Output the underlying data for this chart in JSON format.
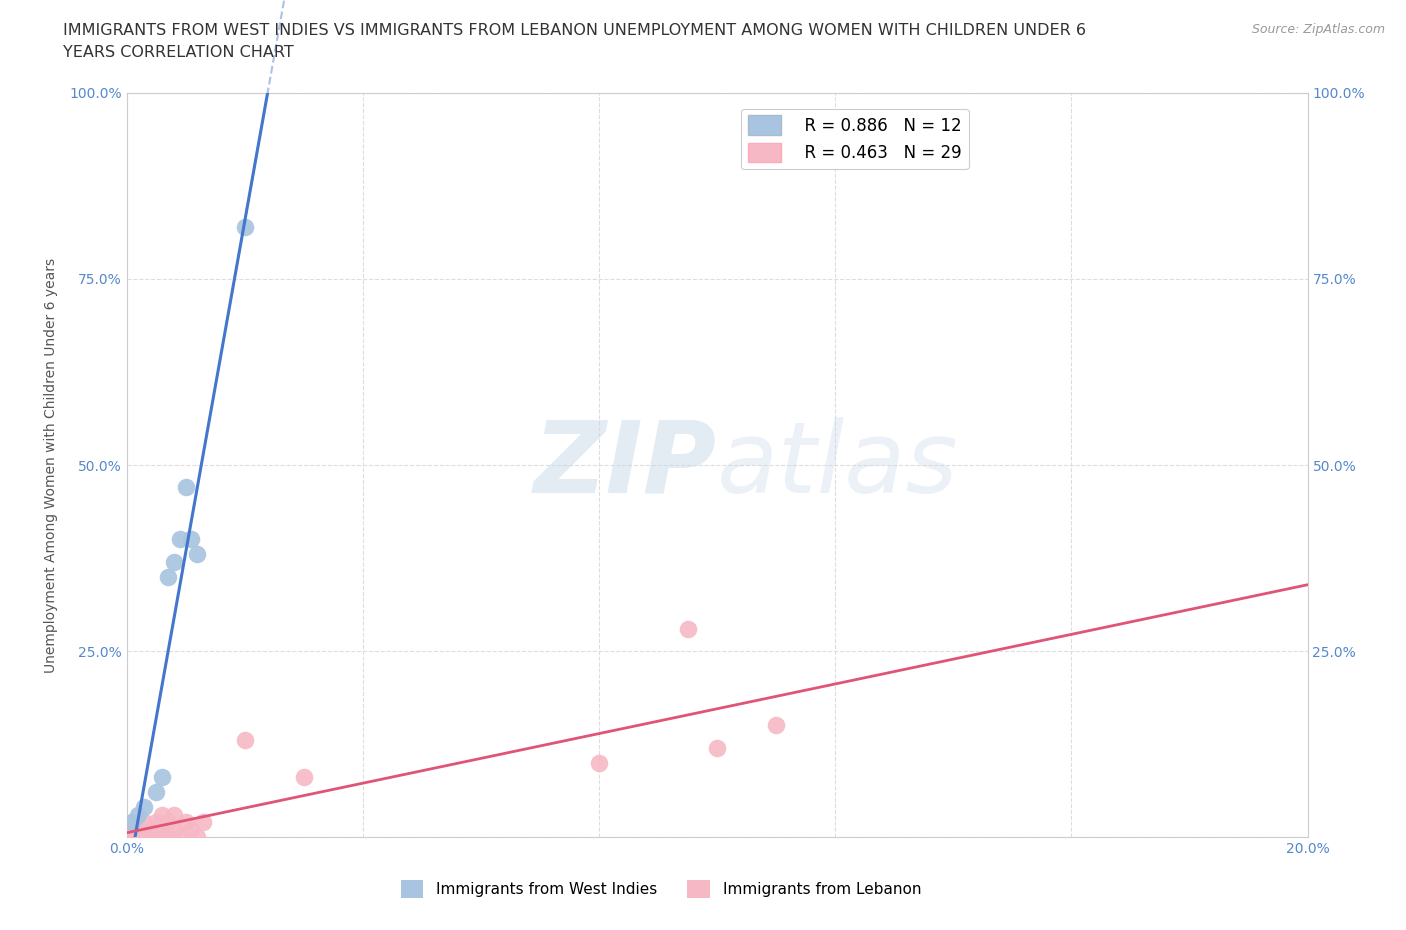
{
  "title_line1": "IMMIGRANTS FROM WEST INDIES VS IMMIGRANTS FROM LEBANON UNEMPLOYMENT AMONG WOMEN WITH CHILDREN UNDER 6",
  "title_line2": "YEARS CORRELATION CHART",
  "source": "Source: ZipAtlas.com",
  "ylabel": "Unemployment Among Women with Children Under 6 years",
  "xlim": [
    0.0,
    0.2
  ],
  "ylim": [
    0.0,
    1.0
  ],
  "xticks": [
    0.0,
    0.04,
    0.08,
    0.12,
    0.16,
    0.2
  ],
  "xtick_labels": [
    "0.0%",
    "",
    "",
    "",
    "",
    "20.0%"
  ],
  "yticks": [
    0.0,
    0.25,
    0.5,
    0.75,
    1.0
  ],
  "ytick_labels": [
    "",
    "25.0%",
    "50.0%",
    "75.0%",
    "100.0%"
  ],
  "west_indies_color": "#a8c4e0",
  "lebanon_color": "#f5b8c4",
  "west_indies_line_color": "#4477cc",
  "lebanon_line_color": "#e05575",
  "R_west_indies": 0.886,
  "N_west_indies": 12,
  "R_lebanon": 0.463,
  "N_lebanon": 29,
  "west_indies_x": [
    0.001,
    0.002,
    0.003,
    0.005,
    0.006,
    0.007,
    0.008,
    0.009,
    0.01,
    0.011,
    0.012,
    0.02
  ],
  "west_indies_y": [
    0.02,
    0.03,
    0.04,
    0.06,
    0.08,
    0.35,
    0.37,
    0.4,
    0.47,
    0.4,
    0.38,
    0.82
  ],
  "lebanon_x": [
    0.001,
    0.001,
    0.001,
    0.002,
    0.002,
    0.003,
    0.003,
    0.004,
    0.004,
    0.005,
    0.005,
    0.005,
    0.006,
    0.006,
    0.007,
    0.007,
    0.008,
    0.008,
    0.009,
    0.01,
    0.011,
    0.012,
    0.013,
    0.02,
    0.03,
    0.08,
    0.095,
    0.1,
    0.11
  ],
  "lebanon_y": [
    0.0,
    0.01,
    0.02,
    0.0,
    0.01,
    0.0,
    0.02,
    0.0,
    0.01,
    0.0,
    0.01,
    0.02,
    0.01,
    0.03,
    0.0,
    0.02,
    0.01,
    0.03,
    0.0,
    0.02,
    0.01,
    0.0,
    0.02,
    0.13,
    0.08,
    0.1,
    0.28,
    0.12,
    0.15
  ],
  "background_color": "#ffffff",
  "grid_color": "#dddddd",
  "watermark_text": "ZIPatlas",
  "legend_R_wi": "R = 0.886   N = 12",
  "legend_R_lb": "R = 0.463   N = 29",
  "title_fontsize": 11.5,
  "axis_label_fontsize": 10,
  "tick_fontsize": 10,
  "legend_fontsize": 12
}
